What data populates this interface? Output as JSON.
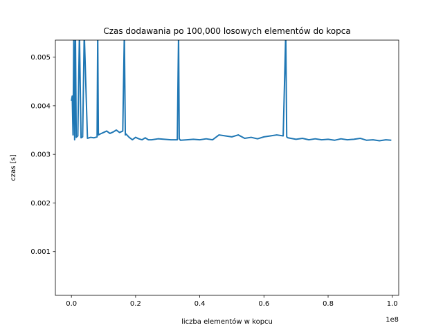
{
  "chart_data": {
    "type": "line",
    "title": "Czas dodawania po 100,000 losowych elementów do kopca",
    "xlabel": "liczba elementów w kopcu",
    "ylabel": "czas [s]",
    "x_offset_label": "1e8",
    "xlim": [
      -0.05,
      1.02
    ],
    "ylim": [
      0.0001,
      0.00535
    ],
    "x_ticks": [
      0.0,
      0.2,
      0.4,
      0.6,
      0.8,
      1.0
    ],
    "x_tick_labels": [
      "0.0",
      "0.2",
      "0.4",
      "0.6",
      "0.8",
      "1.0"
    ],
    "y_ticks": [
      0.001,
      0.002,
      0.003,
      0.004,
      0.005
    ],
    "y_tick_labels": [
      "0.001",
      "0.002",
      "0.003",
      "0.004",
      "0.005"
    ],
    "grid": false,
    "legend": "none",
    "line_color": "#1f77b4",
    "series": [
      {
        "x": [
          0.0,
          0.0025,
          0.005,
          0.0075,
          0.01,
          0.0125,
          0.015,
          0.02,
          0.025,
          0.03,
          0.035,
          0.04,
          0.05,
          0.06,
          0.07,
          0.08,
          0.082,
          0.084,
          0.09,
          0.1,
          0.11,
          0.12,
          0.13,
          0.14,
          0.15,
          0.16,
          0.165,
          0.168,
          0.17,
          0.18,
          0.19,
          0.2,
          0.21,
          0.22,
          0.23,
          0.24,
          0.25,
          0.27,
          0.29,
          0.31,
          0.33,
          0.334,
          0.336,
          0.34,
          0.36,
          0.38,
          0.4,
          0.42,
          0.44,
          0.46,
          0.48,
          0.5,
          0.52,
          0.54,
          0.56,
          0.58,
          0.6,
          0.62,
          0.64,
          0.66,
          0.668,
          0.671,
          0.675,
          0.7,
          0.72,
          0.74,
          0.76,
          0.78,
          0.8,
          0.82,
          0.84,
          0.86,
          0.88,
          0.9,
          0.92,
          0.94,
          0.96,
          0.98,
          0.997
        ],
        "y": [
          0.0041,
          0.0042,
          0.0034,
          0.0055,
          0.0033,
          0.0055,
          0.00335,
          0.00338,
          0.0055,
          0.00334,
          0.00336,
          0.0055,
          0.00333,
          0.00335,
          0.00334,
          0.00336,
          0.0055,
          0.0034,
          0.00342,
          0.00345,
          0.00348,
          0.00343,
          0.00346,
          0.0035,
          0.00345,
          0.00348,
          0.0055,
          0.0034,
          0.00342,
          0.00335,
          0.0033,
          0.00335,
          0.00332,
          0.0033,
          0.00334,
          0.0033,
          0.0033,
          0.00332,
          0.00331,
          0.0033,
          0.0033,
          0.0055,
          0.00332,
          0.00329,
          0.0033,
          0.00331,
          0.0033,
          0.00332,
          0.0033,
          0.0034,
          0.00338,
          0.00336,
          0.0034,
          0.00333,
          0.00335,
          0.00332,
          0.00336,
          0.00338,
          0.0034,
          0.00338,
          0.0055,
          0.00336,
          0.00334,
          0.00331,
          0.00333,
          0.0033,
          0.00332,
          0.0033,
          0.00331,
          0.00329,
          0.00332,
          0.0033,
          0.00331,
          0.00333,
          0.00329,
          0.0033,
          0.00328,
          0.0033,
          0.00329
        ]
      }
    ]
  }
}
